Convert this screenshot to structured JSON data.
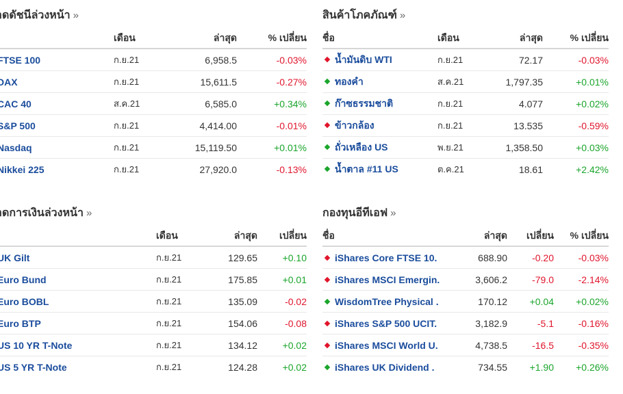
{
  "index_futures": {
    "title": "าดดัชนีล่วงหน้า",
    "arrow": "»",
    "headers": {
      "month": "เดือน",
      "last": "ล่าสุด",
      "pct": "% เปลี่ยน"
    },
    "rows": [
      {
        "name": "FTSE 100",
        "month": "ก.ย.21",
        "last": "6,958.5",
        "pct": "-0.03%",
        "dir": "down"
      },
      {
        "name": "DAX",
        "month": "ก.ย.21",
        "last": "15,611.5",
        "pct": "-0.27%",
        "dir": "down"
      },
      {
        "name": "CAC 40",
        "month": "ส.ค.21",
        "last": "6,585.0",
        "pct": "+0.34%",
        "dir": "up"
      },
      {
        "name": "S&P 500",
        "month": "ก.ย.21",
        "last": "4,414.00",
        "pct": "-0.01%",
        "dir": "down"
      },
      {
        "name": "Nasdaq",
        "month": "ก.ย.21",
        "last": "15,119.50",
        "pct": "+0.01%",
        "dir": "up"
      },
      {
        "name": "Nikkei 225",
        "month": "ก.ย.21",
        "last": "27,920.0",
        "pct": "-0.13%",
        "dir": "down"
      }
    ]
  },
  "commodities": {
    "title": "สินค้าโภคภัณฑ์",
    "arrow": "»",
    "headers": {
      "name": "ชื่อ",
      "month": "เดือน",
      "last": "ล่าสุด",
      "pct": "% เปลี่ยน"
    },
    "rows": [
      {
        "name": "น้ำมันดิบ WTI",
        "month": "ก.ย.21",
        "last": "72.17",
        "pct": "-0.03%",
        "dir": "down"
      },
      {
        "name": "ทองคำ",
        "month": "ส.ค.21",
        "last": "1,797.35",
        "pct": "+0.01%",
        "dir": "up"
      },
      {
        "name": "ก๊าซธรรมชาติ",
        "month": "ก.ย.21",
        "last": "4.077",
        "pct": "+0.02%",
        "dir": "up"
      },
      {
        "name": "ข้าวกล้อง",
        "month": "ก.ย.21",
        "last": "13.535",
        "pct": "-0.59%",
        "dir": "down"
      },
      {
        "name": "ถั่วเหลือง US",
        "month": "พ.ย.21",
        "last": "1,358.50",
        "pct": "+0.03%",
        "dir": "up"
      },
      {
        "name": "น้ำตาล #11 US",
        "month": "ต.ค.21",
        "last": "18.61",
        "pct": "+2.42%",
        "dir": "up"
      }
    ]
  },
  "bond_futures": {
    "title": "าดการเงินล่วงหน้า",
    "arrow": "»",
    "headers": {
      "month": "เดือน",
      "last": "ล่าสุด",
      "chg": "เปลี่ยน"
    },
    "rows": [
      {
        "name": "UK Gilt",
        "month": "ก.ย.21",
        "last": "129.65",
        "chg": "+0.10",
        "dir": "up"
      },
      {
        "name": "Euro Bund",
        "month": "ก.ย.21",
        "last": "175.85",
        "chg": "+0.01",
        "dir": "up"
      },
      {
        "name": "Euro BOBL",
        "month": "ก.ย.21",
        "last": "135.09",
        "chg": "-0.02",
        "dir": "down"
      },
      {
        "name": "Euro BTP",
        "month": "ก.ย.21",
        "last": "154.06",
        "chg": "-0.08",
        "dir": "down"
      },
      {
        "name": "US 10 YR T-Note",
        "month": "ก.ย.21",
        "last": "134.12",
        "chg": "+0.02",
        "dir": "up"
      },
      {
        "name": "US 5 YR T-Note",
        "month": "ก.ย.21",
        "last": "124.28",
        "chg": "+0.02",
        "dir": "up"
      }
    ]
  },
  "etfs": {
    "title": "กองทุนอีทีเอฟ",
    "arrow": "»",
    "headers": {
      "name": "ชื่อ",
      "last": "ล่าสุด",
      "chg": "เปลี่ยน",
      "pct": "% เปลี่ยน"
    },
    "rows": [
      {
        "name": "iShares Core FTSE 10.",
        "last": "688.90",
        "chg": "-0.20",
        "pct": "-0.03%",
        "dir": "down"
      },
      {
        "name": "iShares MSCI Emergin.",
        "last": "3,606.2",
        "chg": "-79.0",
        "pct": "-2.14%",
        "dir": "down"
      },
      {
        "name": "WisdomTree Physical .",
        "last": "170.12",
        "chg": "+0.04",
        "pct": "+0.02%",
        "dir": "up"
      },
      {
        "name": "iShares S&P 500 UCIT.",
        "last": "3,182.9",
        "chg": "-5.1",
        "pct": "-0.16%",
        "dir": "down"
      },
      {
        "name": "iShares MSCI World U.",
        "last": "4,738.5",
        "chg": "-16.5",
        "pct": "-0.35%",
        "dir": "down"
      },
      {
        "name": "iShares UK Dividend .",
        "last": "734.55",
        "chg": "+1.90",
        "pct": "+0.26%",
        "dir": "up"
      }
    ]
  },
  "colors": {
    "up": "#1aa52b",
    "down": "#e0152c",
    "link": "#1a4c9c"
  }
}
